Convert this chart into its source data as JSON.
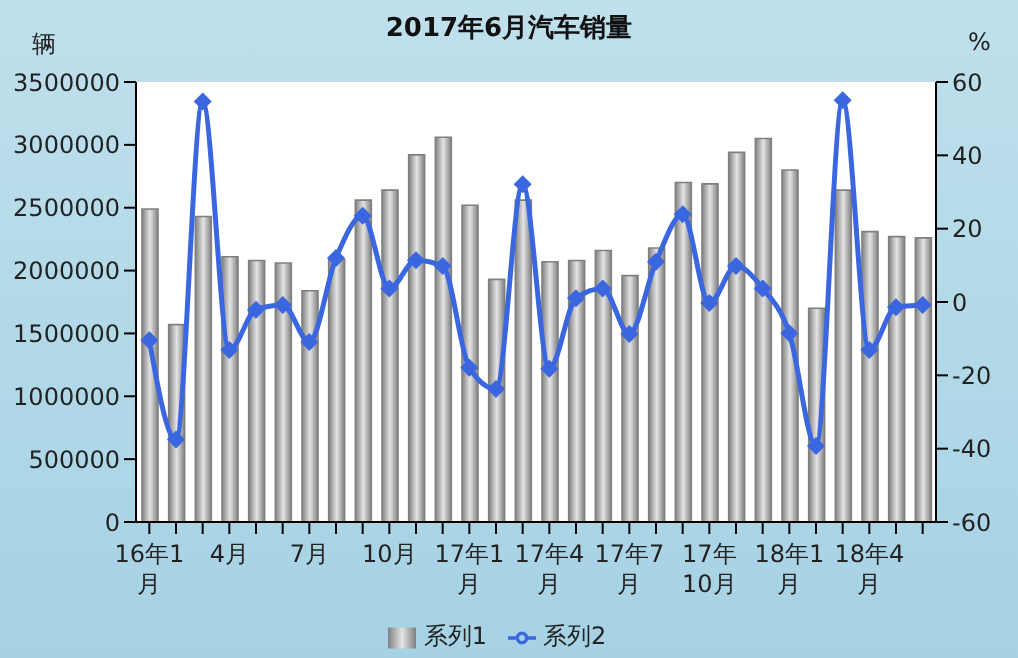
{
  "chart_data": {
    "type": "bar",
    "title": "2017年6月汽车销量",
    "ylabel": "辆",
    "y2label": "%",
    "categories": [
      "16年1月",
      null,
      null,
      "4月",
      null,
      null,
      "7月",
      null,
      null,
      "10月",
      null,
      null,
      "17年1月",
      null,
      null,
      "17年4月",
      null,
      null,
      "17年7月",
      null,
      null,
      "17年10月",
      null,
      null,
      "18年1月",
      null,
      null,
      "18年4月",
      null,
      null
    ],
    "series": [
      {
        "name": "系列1",
        "color": "#808080",
        "values": [
          2490000,
          1570000,
          2430000,
          2110000,
          2080000,
          2060000,
          1840000,
          2090000,
          2560000,
          2640000,
          2920000,
          3060000,
          2520000,
          1930000,
          2560000,
          2070000,
          2080000,
          2160000,
          1960000,
          2180000,
          2700000,
          2690000,
          2940000,
          3050000,
          2800000,
          1700000,
          2640000,
          2310000,
          2270000,
          2260000
        ]
      },
      {
        "name": "系列2",
        "type": "line",
        "axis": "y2",
        "color": "#3a66e0",
        "values": [
          -10.4,
          -37.5,
          54.7,
          -13.1,
          -2.1,
          -0.8,
          -10.9,
          12,
          23.5,
          3.7,
          11.4,
          9.8,
          -17.9,
          -23.7,
          32.1,
          -18.2,
          1,
          3.7,
          -8.7,
          11,
          23.9,
          -0.3,
          9.8,
          3.7,
          -8.5,
          -39.3,
          55,
          -13.1,
          -1.4,
          -0.8
        ]
      }
    ],
    "ylim": [
      0,
      3500000
    ],
    "yticks": [
      0,
      500000,
      1000000,
      1500000,
      2000000,
      2500000,
      3000000,
      3500000
    ],
    "y2lim": [
      -60,
      60
    ],
    "y2ticks": [
      -60,
      -40,
      -20,
      0,
      20,
      40,
      60
    ],
    "grid": false,
    "legend": "bottom",
    "marker": "diamond"
  }
}
